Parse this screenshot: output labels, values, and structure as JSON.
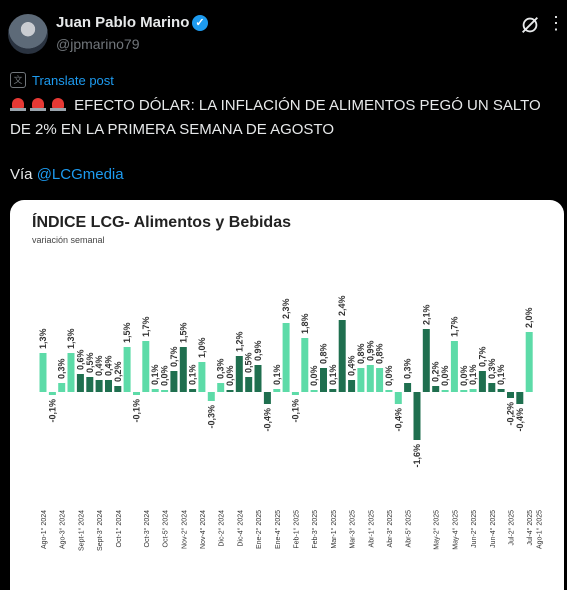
{
  "post": {
    "author_name": "Juan Pablo Marino",
    "handle": "@jpmarino79",
    "translate_label": "Translate post",
    "text": "EFECTO DÓLAR: LA INFLACIÓN DE ALIMENTOS PEGÓ UN SALTO DE 2% EN LA PRIMERA SEMANA DE AGOSTO",
    "via_prefix": "Vía",
    "mention": "@LCGmedia",
    "icons": [
      "verified-badge-icon",
      "grok-icon",
      "more-icon",
      "translate-icon",
      "siren-icon"
    ]
  },
  "colors": {
    "light": "#5ddba8",
    "dark": "#1f6f4f",
    "link": "#1d9bf0"
  },
  "chart_data": {
    "type": "bar",
    "title": "ÍNDICE LCG- Alimentos y Bebidas",
    "subtitle": "variación semanal",
    "values": [
      1.3,
      -0.1,
      0.3,
      1.3,
      0.6,
      0.5,
      0.4,
      0.4,
      0.2,
      1.5,
      -0.1,
      1.7,
      0.1,
      0.0,
      0.7,
      1.5,
      0.1,
      1.0,
      -0.3,
      0.3,
      0.0,
      1.2,
      0.5,
      0.9,
      -0.4,
      0.1,
      2.3,
      -0.1,
      1.8,
      0.0,
      0.8,
      0.1,
      2.4,
      0.4,
      0.8,
      0.9,
      0.8,
      0.0,
      -0.4,
      0.3,
      -1.6,
      2.1,
      0.2,
      0.0,
      1.7,
      0.0,
      0.1,
      0.7,
      0.3,
      0.1,
      -0.2,
      -0.4,
      2.0
    ],
    "labels": [
      "1,3%",
      "-0,1%",
      "0,3%",
      "1,3%",
      "0,6%",
      "0,5%",
      "0,4%",
      "0,4%",
      "0,2%",
      "1,5%",
      "-0,1%",
      "1,7%",
      "0,1%",
      "0,0%",
      "0,7%",
      "1,5%",
      "0,1%",
      "1,0%",
      "-0,3%",
      "0,3%",
      "0,0%",
      "1,2%",
      "0,5%",
      "0,9%",
      "-0,4%",
      "0,1%",
      "2,3%",
      "-0,1%",
      "1,8%",
      "0,0%",
      "0,8%",
      "0,1%",
      "2,4%",
      "0,4%",
      "0,8%",
      "0,9%",
      "0,8%",
      "0,0%",
      "-0,4%",
      "0,3%",
      "-1,6%",
      "2,1%",
      "0,2%",
      "0,0%",
      "1,7%",
      "0,0%",
      "0,1%",
      "0,7%",
      "0,3%",
      "0,1%",
      "-0,2%",
      "-0,4%",
      "2,0%"
    ],
    "shades": [
      "l",
      "l",
      "l",
      "l",
      "d",
      "d",
      "d",
      "d",
      "d",
      "l",
      "l",
      "l",
      "l",
      "l",
      "d",
      "d",
      "d",
      "l",
      "l",
      "l",
      "d",
      "d",
      "d",
      "d",
      "d",
      "l",
      "l",
      "l",
      "l",
      "l",
      "d",
      "d",
      "d",
      "d",
      "l",
      "l",
      "l",
      "l",
      "l",
      "d",
      "d",
      "d",
      "d",
      "l",
      "l",
      "l",
      "l",
      "d",
      "d",
      "d",
      "d",
      "d",
      "l"
    ],
    "x_ticks": {
      "0": "Ago-1° 2024",
      "2": "Ago-3° 2024",
      "4": "Sept-1° 2024",
      "6": "Sept-3° 2024",
      "8": "Oct-1° 2024",
      "11": "Oct-3° 2024",
      "13": "Oct-5° 2024",
      "15": "Nov-2° 2024",
      "17": "Nov-4° 2024",
      "19": "Dic-2° 2024",
      "21": "Dic-4° 2024",
      "23": "Ene-2° 2025",
      "25": "Ene-4° 2025",
      "27": "Feb-1° 2025",
      "29": "Feb-3° 2025",
      "31": "Mar-1° 2025",
      "33": "Mar-3° 2025",
      "35": "Abr-1° 2025",
      "37": "Abr-3° 2025",
      "39": "Abr-5° 2025",
      "42": "May-2° 2025",
      "44": "May-4° 2025",
      "46": "Jun-2° 2025",
      "48": "Jun-4° 2025",
      "50": "Jul-2° 2025",
      "52": "Jul-4° 2025",
      "53": "Ago-1° 2025"
    },
    "ylim": [
      -1.6,
      2.4
    ]
  }
}
